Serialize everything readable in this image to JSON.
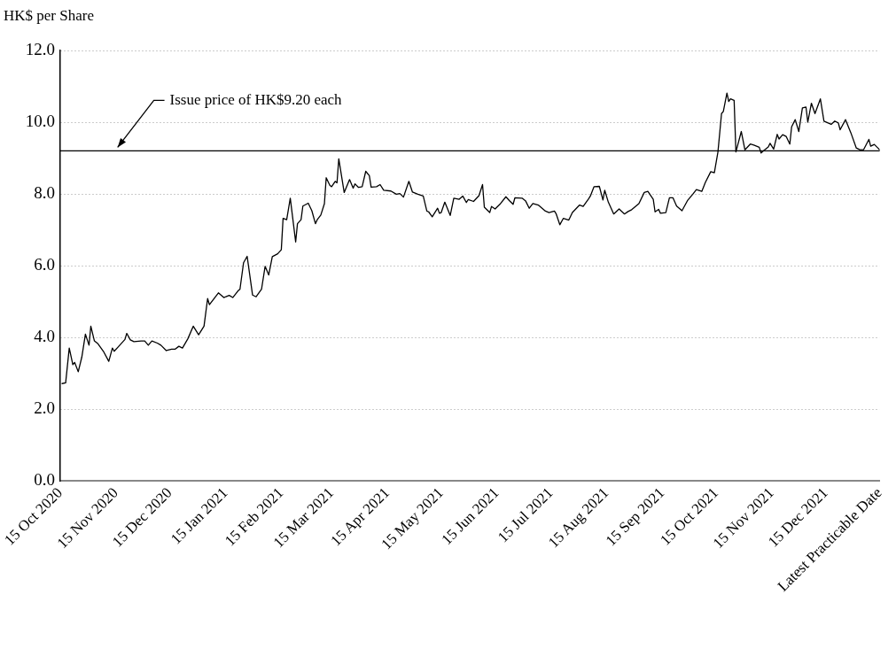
{
  "chart_data": {
    "type": "line",
    "ylabel": "HK$ per Share",
    "x": [
      "2020-10-16",
      "2020-10-18",
      "2020-10-20",
      "2020-10-22",
      "2020-10-23",
      "2020-10-25",
      "2020-10-27",
      "2020-10-29",
      "2020-10-31",
      "2020-11-01",
      "2020-11-03",
      "2020-11-05",
      "2020-11-08",
      "2020-11-11",
      "2020-11-13",
      "2020-11-14",
      "2020-11-16",
      "2020-11-20",
      "2020-11-21",
      "2020-11-23",
      "2020-11-25",
      "2020-11-29",
      "2020-12-01",
      "2020-12-03",
      "2020-12-05",
      "2020-12-08",
      "2020-12-10",
      "2020-12-13",
      "2020-12-16",
      "2020-12-18",
      "2020-12-20",
      "2020-12-22",
      "2020-12-25",
      "2020-12-28",
      "2020-12-31",
      "2021-01-03",
      "2021-01-05",
      "2021-01-06",
      "2021-01-11",
      "2021-01-14",
      "2021-01-17",
      "2021-01-19",
      "2021-01-22",
      "2021-01-23",
      "2021-01-25",
      "2021-01-27",
      "2021-01-30",
      "2021-02-01",
      "2021-02-04",
      "2021-02-06",
      "2021-02-08",
      "2021-02-10",
      "2021-02-13",
      "2021-02-15",
      "2021-02-16",
      "2021-02-18",
      "2021-02-20",
      "2021-02-23",
      "2021-02-24",
      "2021-02-26",
      "2021-02-27",
      "2021-03-02",
      "2021-03-04",
      "2021-03-06",
      "2021-03-07",
      "2021-03-09",
      "2021-03-11",
      "2021-03-12",
      "2021-03-14",
      "2021-03-15",
      "2021-03-17",
      "2021-03-18",
      "2021-03-19",
      "2021-03-22",
      "2021-03-25",
      "2021-03-27",
      "2021-03-28",
      "2021-03-30",
      "2021-04-01",
      "2021-04-03",
      "2021-04-05",
      "2021-04-06",
      "2021-04-09",
      "2021-04-11",
      "2021-04-13",
      "2021-04-17",
      "2021-04-20",
      "2021-04-22",
      "2021-04-24",
      "2021-04-27",
      "2021-04-29",
      "2021-05-02",
      "2021-05-05",
      "2021-05-07",
      "2021-05-08",
      "2021-05-10",
      "2021-05-13",
      "2021-05-14",
      "2021-05-15",
      "2021-05-17",
      "2021-05-20",
      "2021-05-22",
      "2021-05-25",
      "2021-05-27",
      "2021-05-29",
      "2021-05-30",
      "2021-06-02",
      "2021-06-05",
      "2021-06-07",
      "2021-06-08",
      "2021-06-11",
      "2021-06-12",
      "2021-06-14",
      "2021-06-17",
      "2021-06-20",
      "2021-06-22",
      "2021-06-24",
      "2021-06-25",
      "2021-06-29",
      "2021-07-01",
      "2021-07-03",
      "2021-07-05",
      "2021-07-08",
      "2021-07-12",
      "2021-07-14",
      "2021-07-17",
      "2021-07-18",
      "2021-07-20",
      "2021-07-22",
      "2021-07-25",
      "2021-07-27",
      "2021-07-31",
      "2021-08-02",
      "2021-08-05",
      "2021-08-06",
      "2021-08-08",
      "2021-08-11",
      "2021-08-13",
      "2021-08-14",
      "2021-08-16",
      "2021-08-19",
      "2021-08-22",
      "2021-08-25",
      "2021-08-27",
      "2021-08-29",
      "2021-09-02",
      "2021-09-05",
      "2021-09-07",
      "2021-09-10",
      "2021-09-11",
      "2021-09-13",
      "2021-09-14",
      "2021-09-17",
      "2021-09-19",
      "2021-09-21",
      "2021-09-23",
      "2021-09-26",
      "2021-09-29",
      "2021-10-02",
      "2021-10-04",
      "2021-10-07",
      "2021-10-09",
      "2021-10-12",
      "2021-10-14",
      "2021-10-16",
      "2021-10-18",
      "2021-10-19",
      "2021-10-21",
      "2021-10-22",
      "2021-10-23",
      "2021-10-25",
      "2021-10-26",
      "2021-10-29",
      "2021-10-31",
      "2021-11-03",
      "2021-11-05",
      "2021-11-08",
      "2021-11-09",
      "2021-11-11",
      "2021-11-13",
      "2021-11-14",
      "2021-11-16",
      "2021-11-18",
      "2021-11-19",
      "2021-11-21",
      "2021-11-23",
      "2021-11-25",
      "2021-11-26",
      "2021-11-28",
      "2021-11-30",
      "2021-12-02",
      "2021-12-04",
      "2021-12-05",
      "2021-12-07",
      "2021-12-09",
      "2021-12-12",
      "2021-12-14",
      "2021-12-18",
      "2021-12-20",
      "2021-12-22",
      "2021-12-23",
      "2021-12-26",
      "2021-12-29",
      "2022-01-01",
      "2022-01-03",
      "2022-01-05",
      "2022-01-08",
      "2022-01-09",
      "2022-01-11",
      "2022-01-13",
      "2022-01-14"
    ],
    "series": [
      {
        "color": "#000000",
        "values": [
          2.71,
          2.73,
          3.7,
          3.24,
          3.3,
          3.04,
          3.45,
          4.09,
          3.78,
          4.31,
          3.9,
          3.82,
          3.61,
          3.33,
          3.7,
          3.61,
          3.72,
          3.94,
          4.11,
          3.93,
          3.88,
          3.9,
          3.9,
          3.78,
          3.9,
          3.84,
          3.78,
          3.63,
          3.67,
          3.67,
          3.75,
          3.7,
          3.96,
          4.31,
          4.07,
          4.31,
          5.08,
          4.91,
          5.24,
          5.11,
          5.17,
          5.11,
          5.3,
          5.34,
          6.08,
          6.26,
          5.18,
          5.13,
          5.34,
          5.98,
          5.74,
          6.25,
          6.33,
          6.44,
          7.32,
          7.28,
          7.88,
          6.66,
          7.17,
          7.28,
          7.66,
          7.74,
          7.53,
          7.17,
          7.28,
          7.41,
          7.73,
          8.45,
          8.24,
          8.2,
          8.35,
          8.31,
          8.98,
          8.04,
          8.4,
          8.16,
          8.28,
          8.18,
          8.2,
          8.63,
          8.51,
          8.19,
          8.2,
          8.26,
          8.1,
          8.08,
          7.99,
          8.01,
          7.91,
          8.35,
          8.05,
          7.99,
          7.94,
          7.52,
          7.5,
          7.36,
          7.6,
          7.46,
          7.48,
          7.77,
          7.4,
          7.88,
          7.85,
          7.94,
          7.76,
          7.84,
          7.79,
          7.95,
          8.26,
          7.63,
          7.48,
          7.65,
          7.58,
          7.73,
          7.92,
          7.81,
          7.71,
          7.89,
          7.88,
          7.8,
          7.6,
          7.73,
          7.69,
          7.52,
          7.48,
          7.52,
          7.44,
          7.14,
          7.32,
          7.27,
          7.48,
          7.69,
          7.65,
          7.86,
          7.94,
          8.2,
          8.21,
          7.83,
          8.1,
          7.77,
          7.44,
          7.58,
          7.44,
          7.51,
          7.56,
          7.73,
          8.04,
          8.07,
          7.85,
          7.5,
          7.57,
          7.46,
          7.48,
          7.89,
          7.89,
          7.66,
          7.53,
          7.81,
          7.99,
          8.12,
          8.07,
          8.32,
          8.62,
          8.59,
          9.17,
          10.24,
          10.3,
          10.81,
          10.58,
          10.65,
          10.61,
          9.17,
          9.74,
          9.23,
          9.39,
          9.36,
          9.3,
          9.14,
          9.23,
          9.31,
          9.41,
          9.25,
          9.66,
          9.53,
          9.65,
          9.6,
          9.39,
          9.87,
          10.07,
          9.74,
          10.4,
          10.42,
          10.0,
          10.53,
          10.24,
          10.65,
          10.03,
          9.94,
          10.03,
          9.98,
          9.79,
          10.07,
          9.7,
          9.28,
          9.23,
          9.23,
          9.52,
          9.33,
          9.38,
          9.28,
          9.23
        ]
      }
    ],
    "xlim": [
      "2020-10-15",
      "2022-01-14"
    ],
    "xticks": [
      {
        "value": "2020-10-15",
        "label": "15 Oct 2020"
      },
      {
        "value": "2020-11-15",
        "label": "15 Nov 2020"
      },
      {
        "value": "2020-12-15",
        "label": "15 Dec 2020"
      },
      {
        "value": "2021-01-15",
        "label": "15 Jan 2021"
      },
      {
        "value": "2021-02-15",
        "label": "15 Feb 2021"
      },
      {
        "value": "2021-03-15",
        "label": "15 Mar 2021"
      },
      {
        "value": "2021-04-15",
        "label": "15 Apr 2021"
      },
      {
        "value": "2021-05-15",
        "label": "15 May 2021"
      },
      {
        "value": "2021-06-15",
        "label": "15 Jun 2021"
      },
      {
        "value": "2021-07-15",
        "label": "15 Jul 2021"
      },
      {
        "value": "2021-08-15",
        "label": "15 Aug 2021"
      },
      {
        "value": "2021-09-15",
        "label": "15 Sep 2021"
      },
      {
        "value": "2021-10-15",
        "label": "15 Oct 2021"
      },
      {
        "value": "2021-11-15",
        "label": "15 Nov 2021"
      },
      {
        "value": "2021-12-15",
        "label": "15 Dec 2021"
      },
      {
        "value": "2022-01-14",
        "label": "Latest Practicable Date"
      }
    ],
    "ylim": [
      0,
      12
    ],
    "yticks": [
      {
        "value": 0,
        "label": "0.0"
      },
      {
        "value": 2,
        "label": "2.0"
      },
      {
        "value": 4,
        "label": "4.0"
      },
      {
        "value": 6,
        "label": "6.0"
      },
      {
        "value": 8,
        "label": "8.0"
      },
      {
        "value": 10,
        "label": "10.0"
      },
      {
        "value": 12,
        "label": "12.0"
      }
    ],
    "grid": "y",
    "legend": false,
    "marker": "none",
    "line_style": "solid",
    "ref_lines": [
      {
        "axis": "y",
        "value": 9.2,
        "label": "Issue price of HK$9.20 each",
        "color": "#000000"
      }
    ]
  }
}
